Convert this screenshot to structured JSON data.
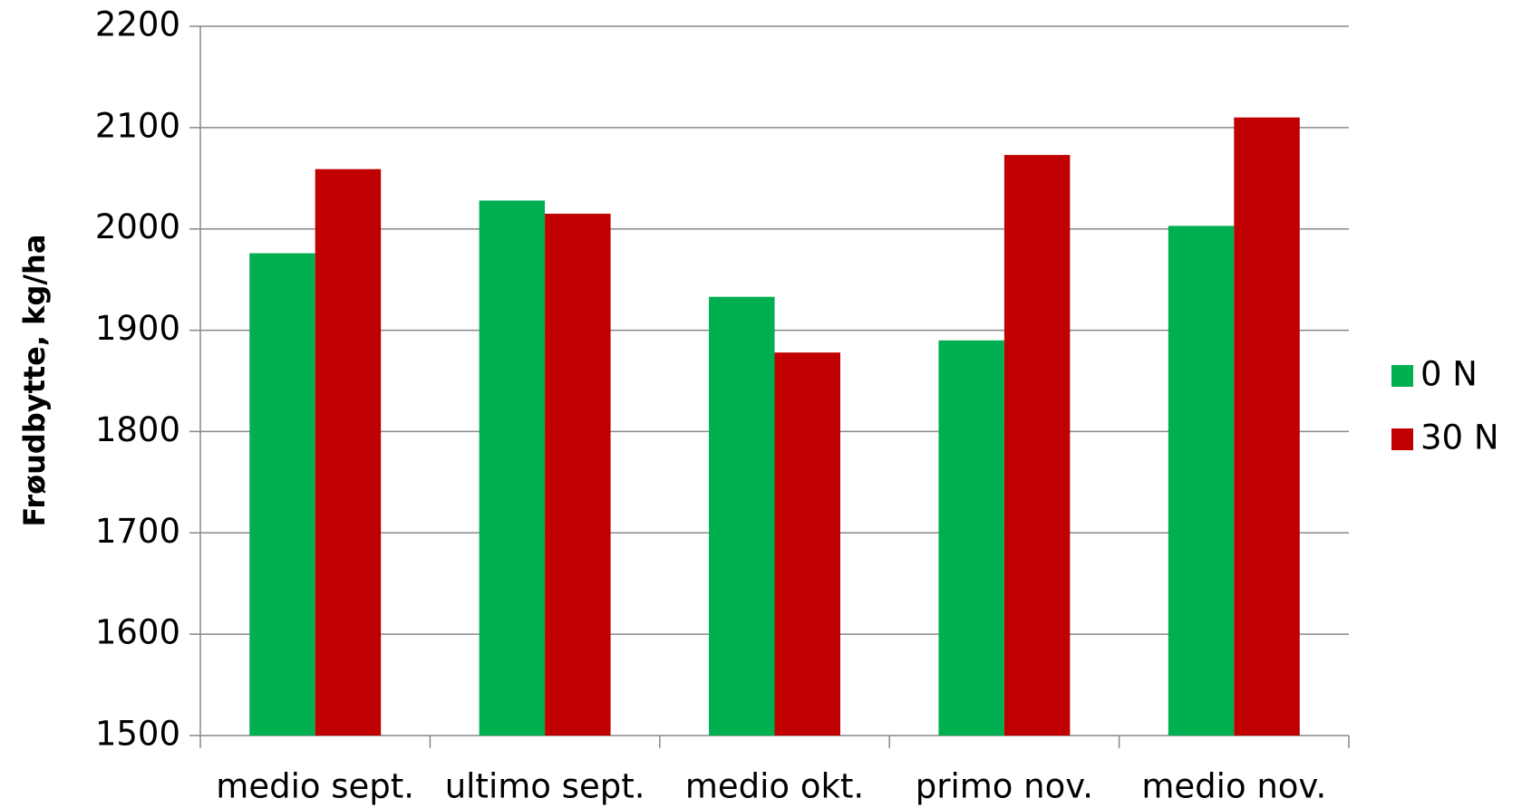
{
  "chart_data": {
    "type": "bar",
    "y_label": "Frøudbytte, kg/ha",
    "categories": [
      "medio sept.",
      "ultimo sept.",
      "medio okt.",
      "primo nov.",
      "medio nov."
    ],
    "series": [
      {
        "name": "0 N",
        "color": "#00b050",
        "values": [
          1976,
          2028,
          1933,
          1890,
          2003
        ]
      },
      {
        "name": "30 N",
        "color": "#c00000",
        "values": [
          2059,
          2015,
          1878,
          2073,
          2110
        ]
      }
    ],
    "ylim": [
      1500,
      2200
    ],
    "yticks": [
      1500,
      1600,
      1700,
      1800,
      1900,
      2000,
      2100,
      2200
    ],
    "grid": true,
    "legend": "right"
  }
}
